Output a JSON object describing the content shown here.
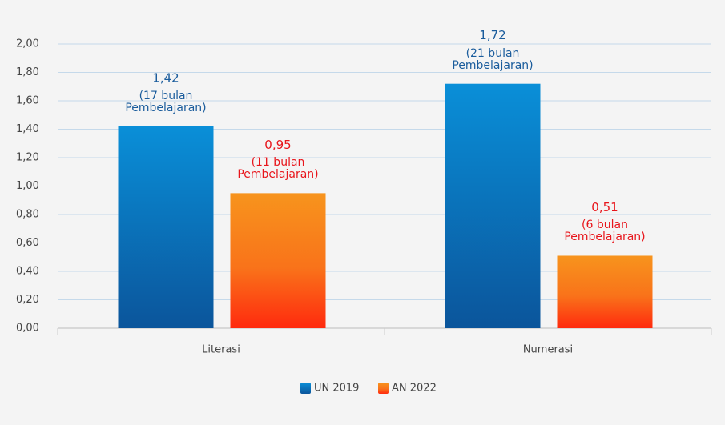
{
  "chart_data": {
    "type": "bar",
    "categories": [
      "Literasi",
      "Numerasi"
    ],
    "series": [
      {
        "name": "UN 2019",
        "color": "#0a8fd8",
        "values": [
          1.42,
          1.72
        ],
        "value_labels": [
          "1,42",
          "1,72"
        ],
        "notes": [
          "(17 bulan Pembelajaran)",
          "(21 bulan Pembelajaran)"
        ]
      },
      {
        "name": "AN 2022",
        "color": "#f7941d",
        "values": [
          0.95,
          0.51
        ],
        "value_labels": [
          "0,95",
          "0,51"
        ],
        "notes": [
          "(11 bulan Pembelajaran)",
          "(6 bulan Pembelajaran)"
        ]
      }
    ],
    "ylim": [
      0,
      2
    ],
    "yticks": [
      {
        "value": 0,
        "label": "0,00"
      },
      {
        "value": 0.2,
        "label": "0,20"
      },
      {
        "value": 0.4,
        "label": "0,40"
      },
      {
        "value": 0.6,
        "label": "0,60"
      },
      {
        "value": 0.8,
        "label": "0,80"
      },
      {
        "value": 1,
        "label": "1,00"
      },
      {
        "value": 1.2,
        "label": "1,20"
      },
      {
        "value": 1.4,
        "label": "1,40"
      },
      {
        "value": 1.6,
        "label": "1,60"
      },
      {
        "value": 1.8,
        "label": "1,80"
      },
      {
        "value": 2,
        "label": "2,00"
      }
    ],
    "grid": true,
    "legend": "bottom"
  }
}
